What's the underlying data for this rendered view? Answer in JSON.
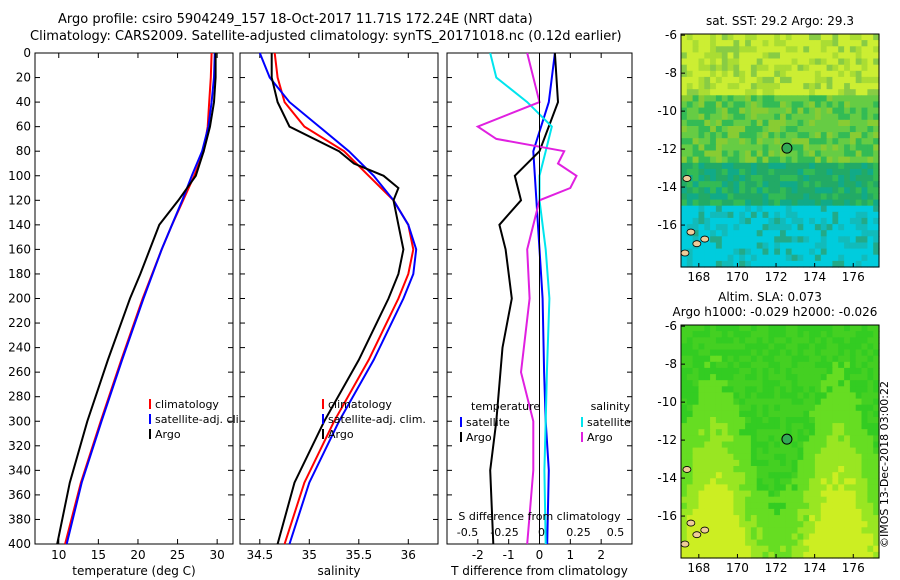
{
  "titles": {
    "line1": "Argo profile: csiro 5904249_157 18-Oct-2017 11.71S 172.24E (NRT data)",
    "line2": "Climatology: CARS2009. Satellite-adjusted climatology: synTS_20171018.nc (0.12d earlier)"
  },
  "colors": {
    "climatology": "#ff0000",
    "satellite": "#0000ff",
    "argo": "#000000",
    "s_sat": "#00e5ee",
    "s_argo": "#e020e0"
  },
  "chart_data": [
    {
      "type": "line",
      "id": "temperature",
      "xlabel": "temperature (deg C)",
      "ylabel": "",
      "xlim": [
        7,
        32
      ],
      "ylim": [
        400,
        0
      ],
      "xticks": [
        10,
        15,
        20,
        25,
        30
      ],
      "yticks": [
        0,
        20,
        40,
        60,
        80,
        100,
        120,
        140,
        160,
        180,
        200,
        220,
        240,
        260,
        280,
        300,
        320,
        340,
        360,
        380,
        400
      ],
      "legend": [
        "climatology",
        "satellite-adj. clim.",
        "Argo"
      ],
      "series": [
        {
          "name": "climatology",
          "depth": [
            0,
            20,
            40,
            60,
            80,
            100,
            120,
            140,
            160,
            200,
            250,
            300,
            350,
            400
          ],
          "values": [
            29.3,
            29.2,
            29.0,
            28.8,
            28.3,
            27.1,
            25.7,
            24.3,
            23.0,
            20.6,
            17.9,
            15.3,
            12.8,
            10.8
          ]
        },
        {
          "name": "satellite-adj. clim.",
          "depth": [
            0,
            20,
            40,
            60,
            80,
            100,
            120,
            140,
            160,
            200,
            250,
            300,
            350,
            400
          ],
          "values": [
            29.7,
            29.6,
            29.3,
            28.9,
            28.1,
            26.8,
            25.6,
            24.3,
            23.0,
            20.7,
            18.0,
            15.4,
            12.9,
            11.0
          ]
        },
        {
          "name": "Argo",
          "depth": [
            0,
            20,
            40,
            60,
            80,
            100,
            120,
            140,
            160,
            180,
            200,
            250,
            300,
            350,
            400
          ],
          "values": [
            29.8,
            29.8,
            29.6,
            29.1,
            28.3,
            27.3,
            25.1,
            22.7,
            21.5,
            20.3,
            19.0,
            16.2,
            13.6,
            11.4,
            9.8
          ]
        }
      ]
    },
    {
      "type": "line",
      "id": "salinity",
      "xlabel": "salinity",
      "xlim": [
        34.3,
        36.3
      ],
      "ylim": [
        400,
        0
      ],
      "xticks": [
        34.5,
        35,
        35.5,
        36
      ],
      "legend": [
        "climatology",
        "satellite-adj. clim.",
        "Argo"
      ],
      "series": [
        {
          "name": "climatology",
          "depth": [
            0,
            20,
            40,
            60,
            80,
            100,
            120,
            140,
            160,
            180,
            200,
            250,
            300,
            350,
            400
          ],
          "values": [
            34.65,
            34.68,
            34.75,
            34.95,
            35.35,
            35.6,
            35.85,
            36.0,
            36.05,
            36.0,
            35.9,
            35.6,
            35.25,
            34.95,
            34.75
          ]
        },
        {
          "name": "satellite-adj. clim.",
          "depth": [
            0,
            20,
            40,
            60,
            80,
            100,
            120,
            140,
            160,
            180,
            200,
            250,
            300,
            350,
            400
          ],
          "values": [
            34.5,
            34.6,
            34.8,
            35.1,
            35.4,
            35.65,
            35.85,
            36.0,
            36.08,
            36.05,
            35.95,
            35.65,
            35.3,
            35.0,
            34.8
          ]
        },
        {
          "name": "Argo",
          "depth": [
            0,
            20,
            40,
            60,
            80,
            90,
            100,
            110,
            120,
            140,
            160,
            180,
            200,
            250,
            300,
            350,
            400
          ],
          "values": [
            34.62,
            34.62,
            34.68,
            34.8,
            35.3,
            35.45,
            35.75,
            35.9,
            35.85,
            35.9,
            35.95,
            35.9,
            35.8,
            35.5,
            35.15,
            34.85,
            34.68
          ]
        }
      ]
    },
    {
      "type": "line",
      "id": "difference",
      "xlabel": "T difference from climatology",
      "xlim": [
        -3,
        3
      ],
      "ylim": [
        400,
        0
      ],
      "xticks": [
        -2,
        -1,
        0,
        1,
        2
      ],
      "top_axis_label": "S difference from climatology",
      "top_ticks": [
        "-0.5",
        "-0.25",
        "0",
        "0.25",
        "0.5"
      ],
      "legend_t": {
        "header": "temperature",
        "items": [
          "satellite",
          "Argo"
        ]
      },
      "legend_s": {
        "header": "salinity",
        "items": [
          "satellite",
          "Argo"
        ]
      },
      "series": [
        {
          "name": "T satellite",
          "depth": [
            0,
            40,
            80,
            120,
            160,
            200,
            260,
            300,
            340,
            400
          ],
          "values": [
            0.5,
            0.3,
            -0.2,
            -0.1,
            0.0,
            0.1,
            0.15,
            0.2,
            0.3,
            0.25
          ]
        },
        {
          "name": "T Argo",
          "depth": [
            0,
            40,
            80,
            100,
            120,
            140,
            160,
            200,
            240,
            300,
            340,
            400
          ],
          "values": [
            0.5,
            0.6,
            0.0,
            -0.8,
            -0.6,
            -1.3,
            -1.1,
            -0.9,
            -1.2,
            -1.4,
            -1.6,
            -1.5
          ]
        },
        {
          "name": "S satellite",
          "depth": [
            0,
            20,
            40,
            60,
            80,
            100,
            120,
            160,
            200,
            260,
            300,
            340,
            400
          ],
          "values": [
            -0.4,
            -0.35,
            -0.1,
            0.1,
            0.05,
            0.0,
            0.0,
            0.05,
            0.08,
            0.06,
            0.05,
            0.04,
            0.05
          ]
        },
        {
          "name": "S Argo",
          "depth": [
            0,
            40,
            60,
            70,
            80,
            90,
            100,
            110,
            120,
            160,
            200,
            260,
            300,
            340,
            400
          ],
          "values": [
            -0.1,
            0.0,
            -0.5,
            -0.35,
            0.2,
            0.15,
            0.3,
            0.25,
            0.0,
            -0.1,
            -0.08,
            -0.15,
            -0.05,
            -0.05,
            -0.1
          ]
        }
      ]
    }
  ],
  "map_sst": {
    "title": "sat. SST: 29.2 Argo: 29.3",
    "xticks": [
      "168",
      "170",
      "172",
      "174",
      "176"
    ],
    "yticks": [
      "-6",
      "-8",
      "-10",
      "-12",
      "-14",
      "-16"
    ]
  },
  "map_sla": {
    "title1": "Altim. SLA: 0.073",
    "title2": "Argo h1000: -0.029 h2000: -0.026",
    "xticks": [
      "168",
      "170",
      "172",
      "174",
      "176"
    ],
    "yticks": [
      "-6",
      "-8",
      "-10",
      "-12",
      "-14",
      "-16"
    ]
  },
  "watermark": "©IMOS 13-Dec-2018 03:00:22"
}
